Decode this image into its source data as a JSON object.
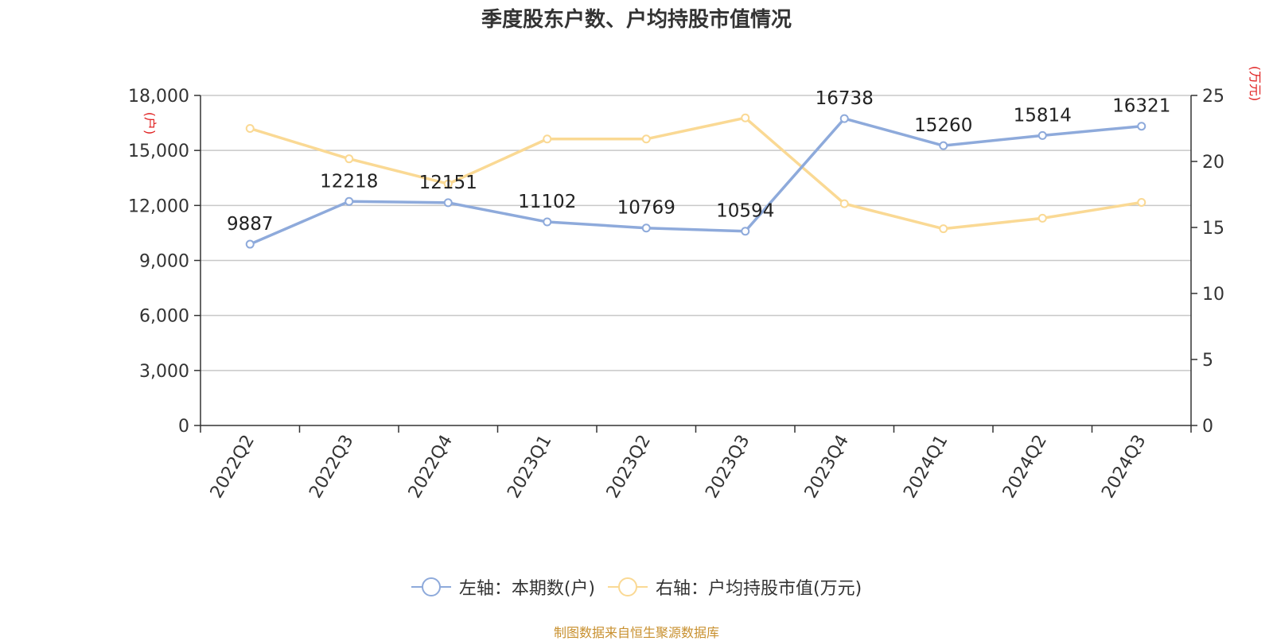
{
  "title": "季度股东户数、户均持股市值情况",
  "source": "制图数据来自恒生聚源数据库",
  "legend": {
    "left_label": "左轴：本期数(户)",
    "right_label": "右轴：户均持股市值(万元)"
  },
  "chart_data": {
    "type": "line",
    "categories": [
      "2022Q2",
      "2022Q3",
      "2022Q4",
      "2023Q1",
      "2023Q2",
      "2023Q3",
      "2023Q4",
      "2024Q1",
      "2024Q2",
      "2024Q3"
    ],
    "left_axis": {
      "unit_label": "(户)",
      "range": [
        0,
        18000
      ],
      "ticks": [
        0,
        3000,
        6000,
        9000,
        12000,
        15000,
        18000
      ],
      "tick_labels": [
        "0",
        "3,000",
        "6,000",
        "9,000",
        "12,000",
        "15,000",
        "18,000"
      ]
    },
    "right_axis": {
      "unit_label": "(万元)",
      "range": [
        0,
        25
      ],
      "ticks": [
        0,
        5,
        10,
        15,
        20,
        25
      ],
      "tick_labels": [
        "0",
        "5",
        "10",
        "15",
        "20",
        "25"
      ]
    },
    "grid": true,
    "legend_position": "bottom",
    "series": [
      {
        "name": "左轴：本期数(户)",
        "axis": "left",
        "color": "#8eaadb",
        "values": [
          9887,
          12218,
          12151,
          11102,
          10769,
          10594,
          16738,
          15260,
          15814,
          16321
        ],
        "labels": [
          "9887",
          "12218",
          "12151",
          "11102",
          "10769",
          "10594",
          "16738",
          "15260",
          "15814",
          "16321"
        ]
      },
      {
        "name": "右轴：户均持股市值(万元)",
        "axis": "right",
        "color": "#fad994",
        "values": [
          22.5,
          20.2,
          18.3,
          21.7,
          21.7,
          23.3,
          16.8,
          14.9,
          15.7,
          16.9
        ]
      }
    ]
  }
}
